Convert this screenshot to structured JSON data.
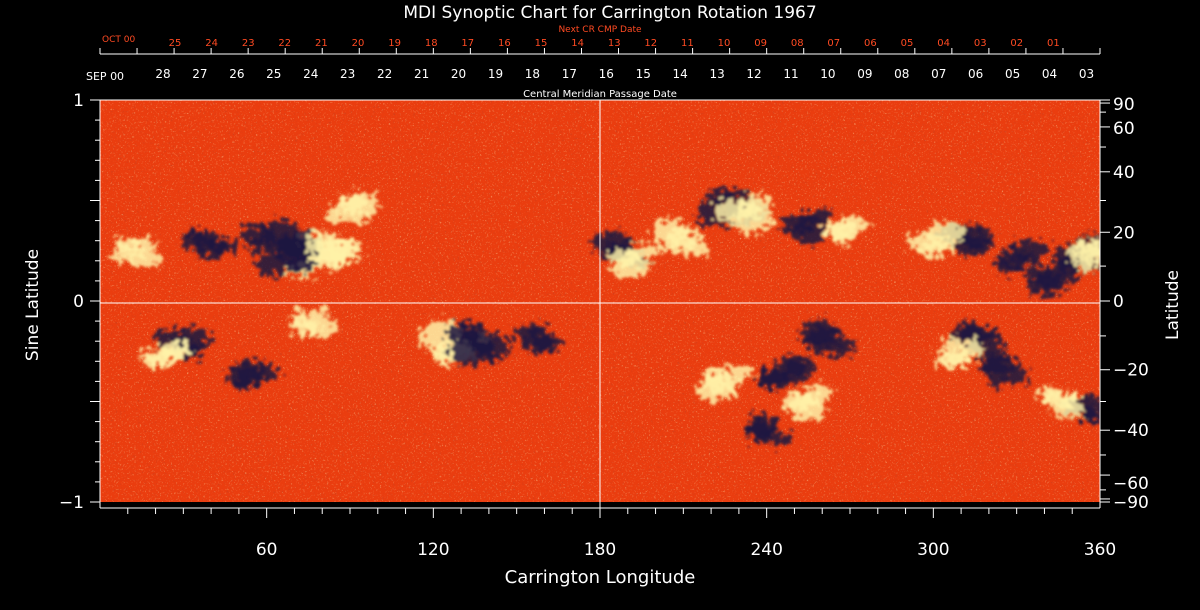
{
  "colors": {
    "background": "#000000",
    "text": "#ffffff",
    "next_cr_text": "#ff4a22",
    "map_base": "#ea3d0f",
    "map_positive": "#fff2a8",
    "map_negative": "#1b1440",
    "axis": "#ffffff"
  },
  "chart_data": {
    "type": "heatmap",
    "title": "MDI Synoptic Chart for Carrington Rotation 1967",
    "xlabel": "Carrington Longitude",
    "ylabel_left": "Sine Latitude",
    "ylabel_right": "Latitude",
    "xlim": [
      0,
      360
    ],
    "ylim": [
      -1,
      1
    ],
    "x_ticks": [
      {
        "value": 60,
        "label": "60"
      },
      {
        "value": 120,
        "label": "120"
      },
      {
        "value": 180,
        "label": "180"
      },
      {
        "value": 240,
        "label": "240"
      },
      {
        "value": 300,
        "label": "300"
      },
      {
        "value": 360,
        "label": "360"
      }
    ],
    "left_ticks": [
      {
        "value": 1,
        "label": "1"
      },
      {
        "value": 0,
        "label": "0"
      },
      {
        "value": -1,
        "label": "−1"
      }
    ],
    "right_ticks": [
      {
        "lat": 90,
        "label": "90"
      },
      {
        "lat": 60,
        "label": "60"
      },
      {
        "lat": 40,
        "label": "40"
      },
      {
        "lat": 20,
        "label": "20"
      },
      {
        "lat": 0,
        "label": "0"
      },
      {
        "lat": -20,
        "label": "−20"
      },
      {
        "lat": -40,
        "label": "−40"
      },
      {
        "lat": -60,
        "label": "−60"
      },
      {
        "lat": -90,
        "label": "−90"
      }
    ],
    "cmp_axis": {
      "label": "Central Meridian Passage Date",
      "start_label": "SEP 00",
      "days": [
        "28",
        "27",
        "26",
        "25",
        "24",
        "23",
        "22",
        "21",
        "20",
        "19",
        "18",
        "17",
        "16",
        "15",
        "14",
        "13",
        "12",
        "11",
        "10",
        "09",
        "08",
        "07",
        "06",
        "05",
        "04",
        "03"
      ]
    },
    "next_cr_axis": {
      "label": "Next CR CMP Date",
      "start_label": "OCT 00",
      "days": [
        "25",
        "24",
        "23",
        "22",
        "21",
        "20",
        "19",
        "18",
        "17",
        "16",
        "15",
        "14",
        "13",
        "12",
        "11",
        "10",
        "09",
        "08",
        "07",
        "06",
        "05",
        "04",
        "03",
        "02",
        "01"
      ]
    },
    "reference_lines": [
      {
        "axis": "x",
        "value": 180
      },
      {
        "axis": "y",
        "value": 0
      }
    ],
    "regions": [
      {
        "lon": 76,
        "sinlat": 0.22,
        "polarity": "positive",
        "strength": 1.0
      },
      {
        "lon": 68,
        "sinlat": 0.22,
        "polarity": "negative",
        "strength": 1.0
      },
      {
        "lon": 85,
        "sinlat": 0.24,
        "polarity": "positive",
        "strength": 0.8
      },
      {
        "lon": 60,
        "sinlat": 0.3,
        "polarity": "negative",
        "strength": 0.7
      },
      {
        "lon": 40,
        "sinlat": 0.3,
        "polarity": "negative",
        "strength": 0.6
      },
      {
        "lon": 12,
        "sinlat": 0.25,
        "polarity": "positive",
        "strength": 0.5
      },
      {
        "lon": 90,
        "sinlat": 0.45,
        "polarity": "positive",
        "strength": 0.6
      },
      {
        "lon": 128,
        "sinlat": -0.22,
        "polarity": "positive",
        "strength": 1.0
      },
      {
        "lon": 135,
        "sinlat": -0.2,
        "polarity": "negative",
        "strength": 1.0
      },
      {
        "lon": 30,
        "sinlat": -0.22,
        "polarity": "negative",
        "strength": 0.6
      },
      {
        "lon": 25,
        "sinlat": -0.28,
        "polarity": "positive",
        "strength": 0.5
      },
      {
        "lon": 55,
        "sinlat": -0.38,
        "polarity": "negative",
        "strength": 0.6
      },
      {
        "lon": 75,
        "sinlat": -0.1,
        "polarity": "positive",
        "strength": 0.5
      },
      {
        "lon": 157,
        "sinlat": -0.18,
        "polarity": "negative",
        "strength": 0.5
      },
      {
        "lon": 188,
        "sinlat": 0.25,
        "polarity": "negative",
        "strength": 0.7
      },
      {
        "lon": 192,
        "sinlat": 0.2,
        "polarity": "positive",
        "strength": 0.6
      },
      {
        "lon": 210,
        "sinlat": 0.3,
        "polarity": "positive",
        "strength": 0.7
      },
      {
        "lon": 228,
        "sinlat": 0.48,
        "polarity": "negative",
        "strength": 0.9
      },
      {
        "lon": 233,
        "sinlat": 0.44,
        "polarity": "positive",
        "strength": 0.8
      },
      {
        "lon": 255,
        "sinlat": 0.38,
        "polarity": "negative",
        "strength": 0.6
      },
      {
        "lon": 268,
        "sinlat": 0.34,
        "polarity": "positive",
        "strength": 0.5
      },
      {
        "lon": 312,
        "sinlat": 0.3,
        "polarity": "negative",
        "strength": 0.7
      },
      {
        "lon": 300,
        "sinlat": 0.3,
        "polarity": "positive",
        "strength": 0.6
      },
      {
        "lon": 330,
        "sinlat": 0.22,
        "polarity": "negative",
        "strength": 0.6
      },
      {
        "lon": 342,
        "sinlat": 0.1,
        "polarity": "negative",
        "strength": 0.7
      },
      {
        "lon": 352,
        "sinlat": 0.22,
        "polarity": "negative",
        "strength": 0.8
      },
      {
        "lon": 358,
        "sinlat": 0.22,
        "polarity": "positive",
        "strength": 0.6
      },
      {
        "lon": 225,
        "sinlat": -0.4,
        "polarity": "positive",
        "strength": 0.7
      },
      {
        "lon": 245,
        "sinlat": -0.35,
        "polarity": "negative",
        "strength": 0.8
      },
      {
        "lon": 262,
        "sinlat": -0.2,
        "polarity": "negative",
        "strength": 0.7
      },
      {
        "lon": 255,
        "sinlat": -0.5,
        "polarity": "positive",
        "strength": 0.6
      },
      {
        "lon": 240,
        "sinlat": -0.65,
        "polarity": "negative",
        "strength": 0.5
      },
      {
        "lon": 315,
        "sinlat": -0.18,
        "polarity": "negative",
        "strength": 0.6
      },
      {
        "lon": 310,
        "sinlat": -0.25,
        "polarity": "positive",
        "strength": 0.5
      },
      {
        "lon": 325,
        "sinlat": -0.35,
        "polarity": "negative",
        "strength": 0.6
      },
      {
        "lon": 355,
        "sinlat": -0.55,
        "polarity": "negative",
        "strength": 0.5
      },
      {
        "lon": 345,
        "sinlat": -0.5,
        "polarity": "positive",
        "strength": 0.5
      }
    ]
  }
}
